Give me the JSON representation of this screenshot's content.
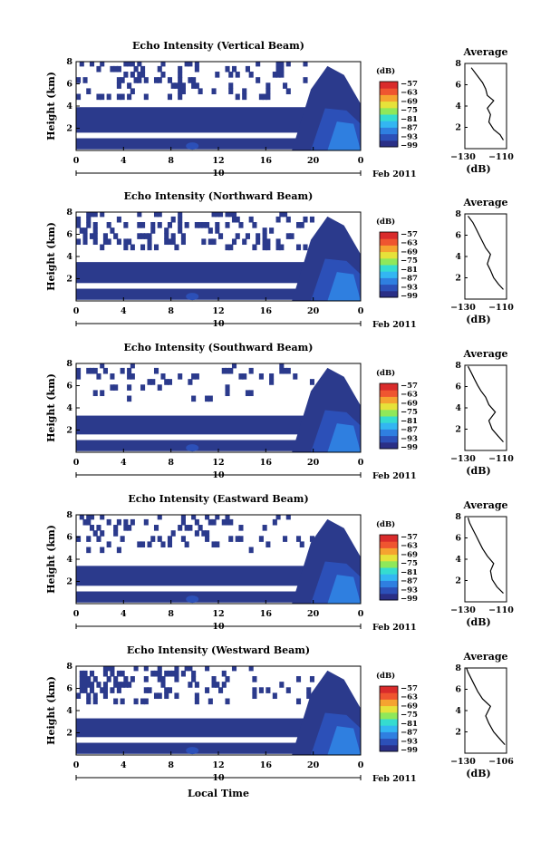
{
  "panels": [
    {
      "title": "Echo Intensity (Vertical Beam)",
      "profile_x_ticks": [
        "−130",
        "−110"
      ]
    },
    {
      "title": "Echo Intensity (Northward Beam)",
      "profile_x_ticks": [
        "−130",
        "−110"
      ]
    },
    {
      "title": "Echo Intensity (Southward Beam)",
      "profile_x_ticks": [
        "−130",
        "−110"
      ]
    },
    {
      "title": "Echo Intensity (Eastward Beam)",
      "profile_x_ticks": [
        "−130",
        "−110"
      ]
    },
    {
      "title": "Echo Intensity (Westward Beam)",
      "profile_x_ticks": [
        "−130",
        "−106"
      ]
    }
  ],
  "y_label": "Height (km)",
  "y_ticks": [
    "2",
    "4",
    "6",
    "8"
  ],
  "x_ticks": [
    "0",
    "4",
    "8",
    "12",
    "16",
    "20",
    "0"
  ],
  "date_day": "10",
  "date_label": "Feb 2011",
  "x_label": "Local Time",
  "colorbar": {
    "unit": "(dB)",
    "labels": [
      "−57",
      "−63",
      "−69",
      "−75",
      "−81",
      "−87",
      "−93",
      "−99"
    ]
  },
  "profile": {
    "title": "Average",
    "y_ticks": [
      "2",
      "4",
      "6",
      "8"
    ],
    "x_unit": "(dB)"
  },
  "colors": {
    "background_echo": "#2b3a8c",
    "colorbar": [
      "#2a2f86",
      "#2c50b8",
      "#2f7fe0",
      "#33b6f2",
      "#35dcd0",
      "#8fe85a",
      "#e6e23a",
      "#f5a330",
      "#ef5530",
      "#d92b2b"
    ]
  },
  "chart_data": [
    {
      "type": "heatmap",
      "title": "Echo Intensity (Vertical Beam)",
      "xlabel": "Local Time",
      "ylabel": "Height (km)",
      "xlim": [
        0,
        24
      ],
      "ylim": [
        0,
        8
      ],
      "zlim": [
        -99,
        -57
      ],
      "z_unit": "dB"
    },
    {
      "type": "line",
      "title": "Average",
      "xlabel": "(dB)",
      "x": [
        -108,
        -110,
        -114,
        -117,
        -116,
        -118,
        -114,
        -118,
        -119,
        -121,
        -124,
        -128
      ],
      "y": [
        0.8,
        1.3,
        1.8,
        2.5,
        3.2,
        3.8,
        4.5,
        5.0,
        5.6,
        6.2,
        6.8,
        7.6
      ],
      "xlim": [
        -132,
        -106
      ],
      "ylim": [
        0,
        8
      ]
    },
    {
      "type": "heatmap",
      "title": "Echo Intensity (Northward Beam)",
      "xlabel": "Local Time",
      "ylabel": "Height (km)",
      "xlim": [
        0,
        24
      ],
      "ylim": [
        0,
        8
      ],
      "zlim": [
        -99,
        -57
      ],
      "z_unit": "dB"
    },
    {
      "type": "line",
      "title": "Average",
      "xlabel": "(dB)",
      "x": [
        -108,
        -111,
        -114,
        -116,
        -118,
        -116,
        -119,
        -121,
        -123,
        -125,
        -127,
        -130
      ],
      "y": [
        0.9,
        1.4,
        2.0,
        2.7,
        3.3,
        4.2,
        4.8,
        5.4,
        6.0,
        6.6,
        7.2,
        7.8
      ],
      "xlim": [
        -132,
        -106
      ],
      "ylim": [
        0,
        8
      ]
    },
    {
      "type": "heatmap",
      "title": "Echo Intensity (Southward Beam)",
      "xlabel": "Local Time",
      "ylabel": "Height (km)",
      "xlim": [
        0,
        24
      ],
      "ylim": [
        0,
        8
      ],
      "zlim": [
        -99,
        -57
      ],
      "z_unit": "dB"
    },
    {
      "type": "line",
      "title": "Average",
      "xlabel": "(dB)",
      "x": [
        -108,
        -111,
        -115,
        -117,
        -113,
        -117,
        -119,
        -122,
        -124,
        -126,
        -128,
        -130
      ],
      "y": [
        0.8,
        1.3,
        2.0,
        2.8,
        3.6,
        4.3,
        5.0,
        5.6,
        6.1,
        6.7,
        7.3,
        7.9
      ],
      "xlim": [
        -132,
        -106
      ],
      "ylim": [
        0,
        8
      ]
    },
    {
      "type": "heatmap",
      "title": "Echo Intensity (Eastward Beam)",
      "xlabel": "Local Time",
      "ylabel": "Height (km)",
      "xlim": [
        0,
        24
      ],
      "ylim": [
        0,
        8
      ],
      "zlim": [
        -99,
        -57
      ],
      "z_unit": "dB"
    },
    {
      "type": "line",
      "title": "Average",
      "xlabel": "(dB)",
      "x": [
        -108,
        -112,
        -115,
        -116,
        -114,
        -118,
        -121,
        -123,
        -125,
        -127,
        -129,
        -130
      ],
      "y": [
        0.8,
        1.4,
        2.1,
        2.9,
        3.6,
        4.3,
        5.0,
        5.6,
        6.2,
        6.8,
        7.4,
        7.9
      ],
      "xlim": [
        -132,
        -106
      ],
      "ylim": [
        0,
        8
      ]
    },
    {
      "type": "heatmap",
      "title": "Echo Intensity (Westward Beam)",
      "xlabel": "Local Time",
      "ylabel": "Height (km)",
      "xlim": [
        0,
        24
      ],
      "ylim": [
        0,
        8
      ],
      "zlim": [
        -99,
        -57
      ],
      "z_unit": "dB"
    },
    {
      "type": "line",
      "title": "Average",
      "xlabel": "(dB)",
      "x": [
        -107,
        -110,
        -114,
        -117,
        -119,
        -116,
        -121,
        -124,
        -126,
        -128,
        -130,
        -131
      ],
      "y": [
        0.8,
        1.3,
        2.0,
        2.8,
        3.5,
        4.4,
        5.1,
        5.8,
        6.4,
        7.0,
        7.6,
        8.0
      ],
      "xlim": [
        -132,
        -106
      ],
      "ylim": [
        0,
        8
      ]
    }
  ]
}
